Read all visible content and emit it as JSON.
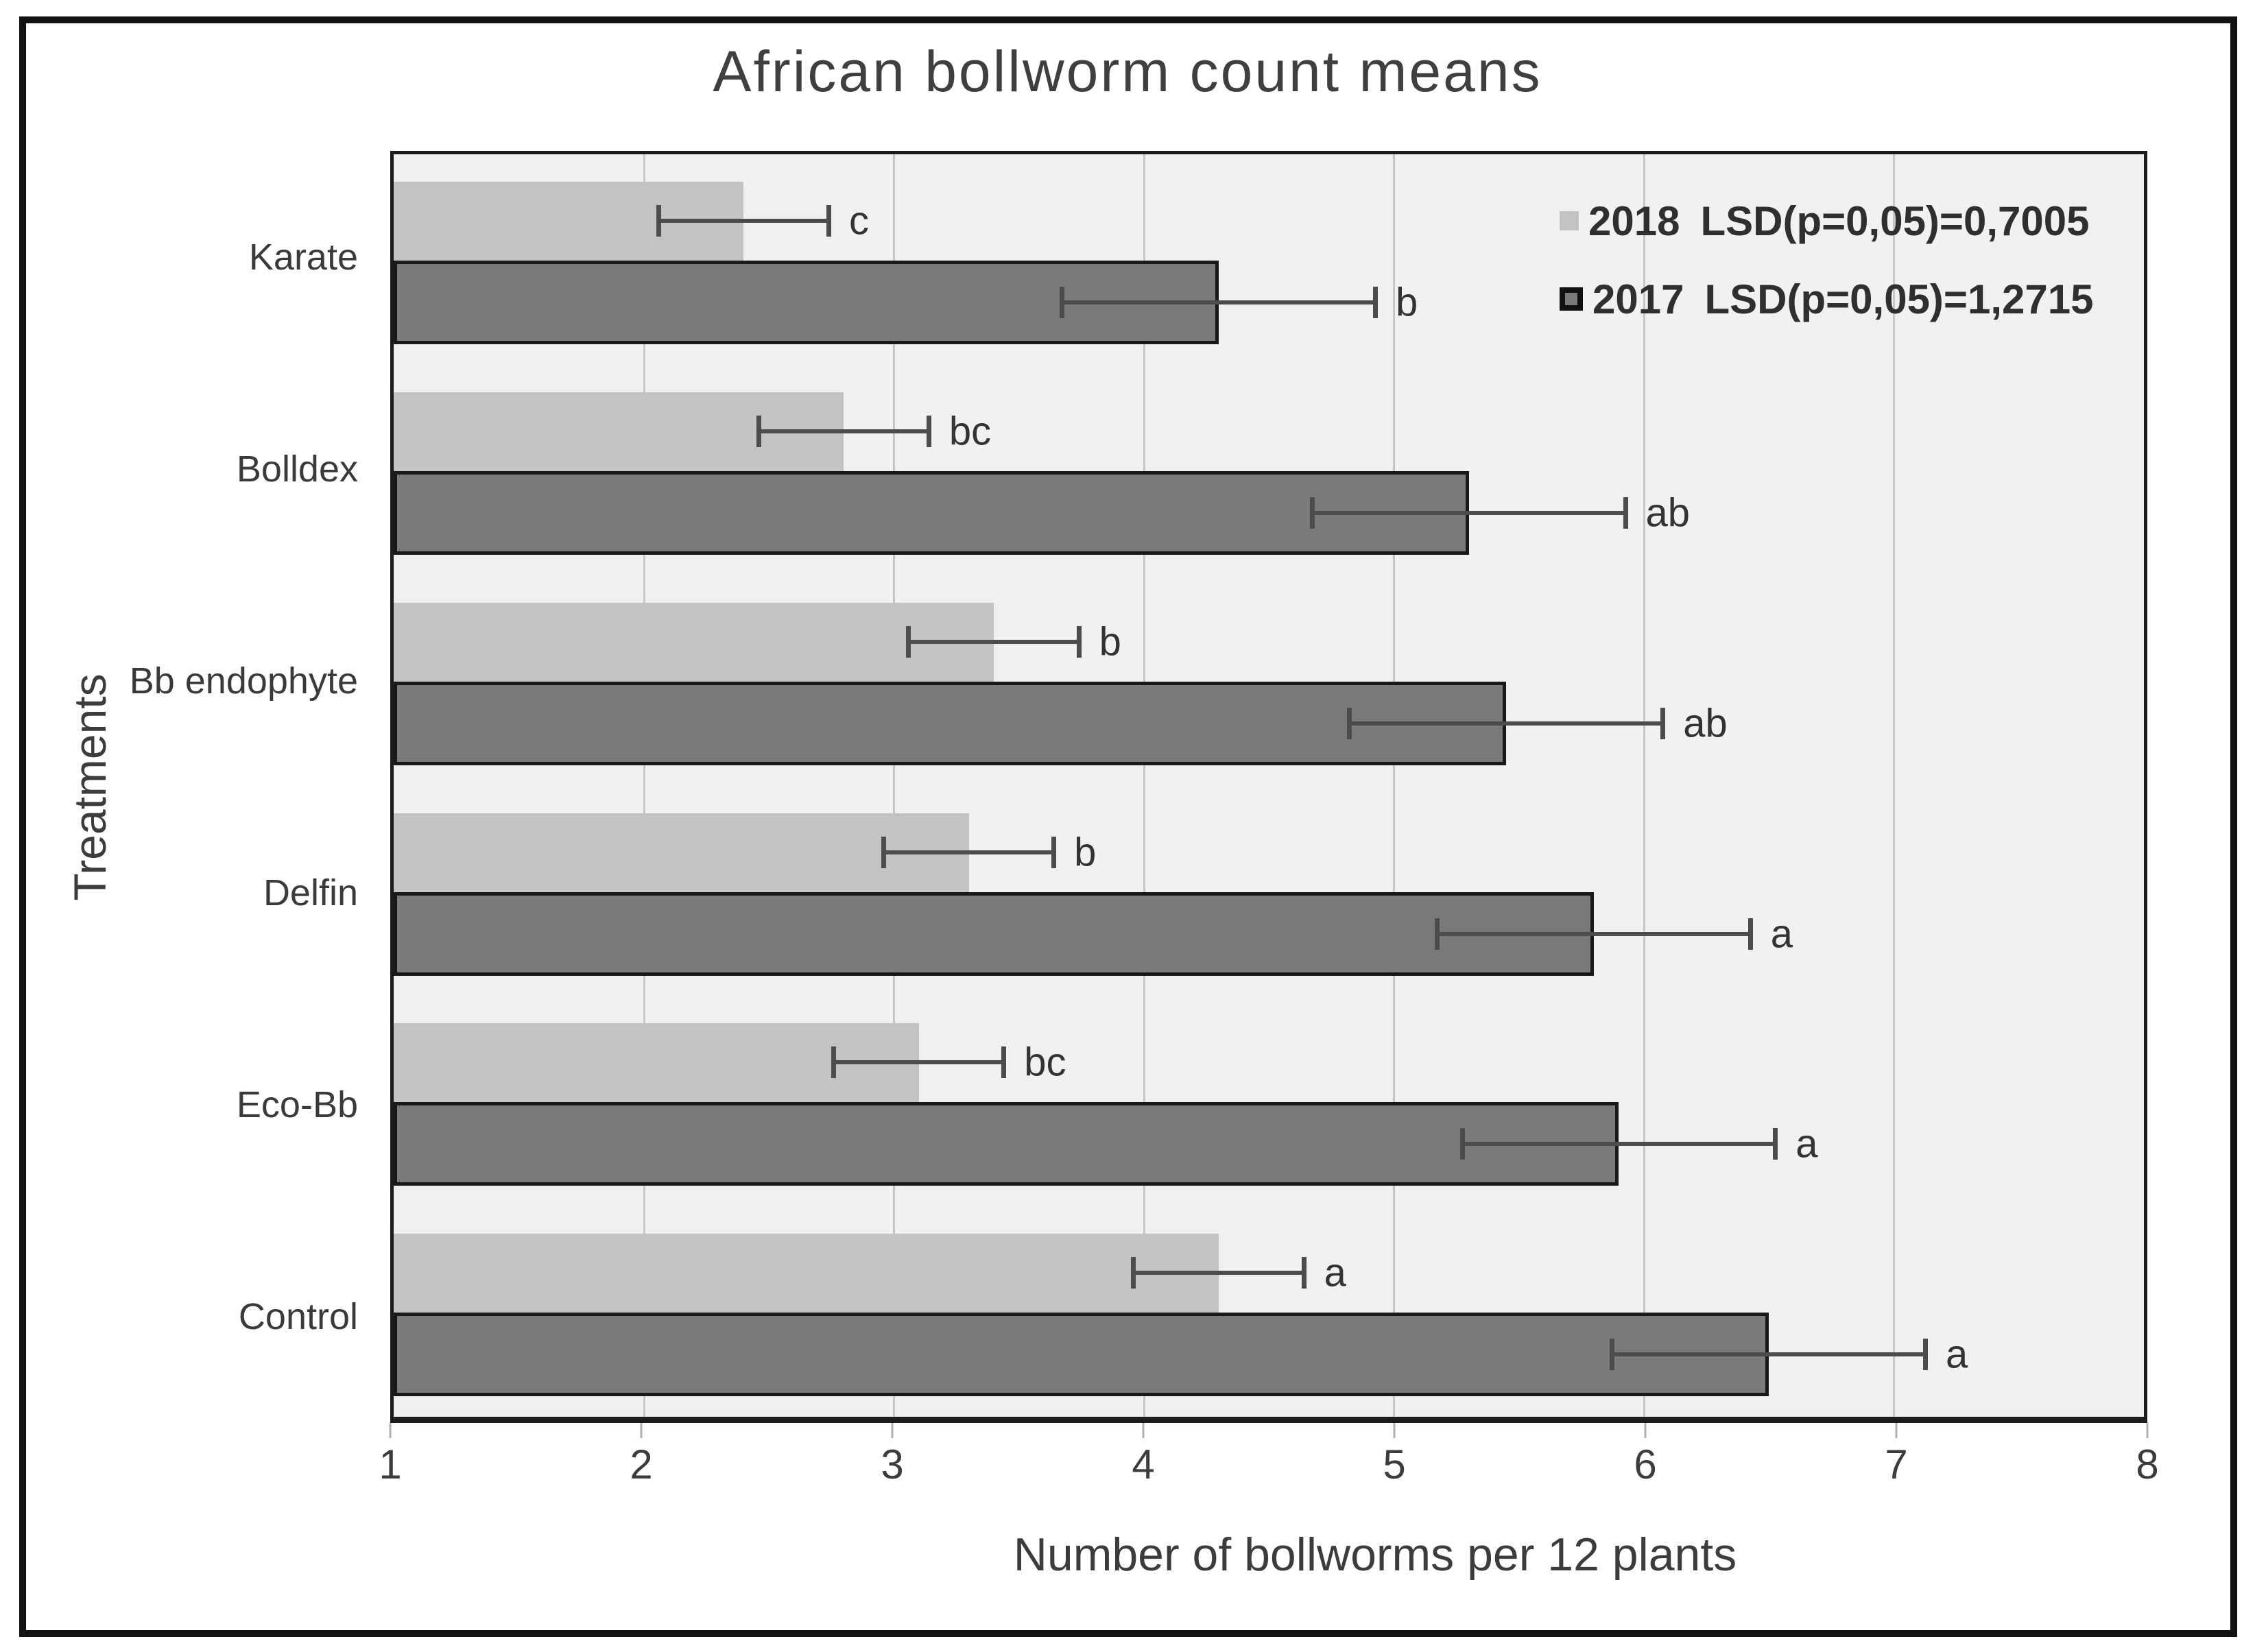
{
  "title": "African bollworm count means",
  "x_axis_title": "Number of bollworms per 12 plants",
  "y_axis_title": "Treatments",
  "legend": {
    "items": [
      {
        "year": "2018",
        "lsd": "LSD(p=0,05)=0,7005",
        "swatch_color": "#c3c3c3",
        "bordered": false
      },
      {
        "year": "2017",
        "lsd": "LSD(p=0,05)=1,2715",
        "swatch_color": "#7a7a7a",
        "bordered": true
      }
    ]
  },
  "colors": {
    "bar_2018": "#c3c3c3",
    "bar_2017": "#7a7a7a",
    "bar_2017_border": "#191919",
    "plot_background": "#f1f1f1",
    "gridline": "#c7c7c7",
    "error_bar": "#4c4c4c",
    "frame": "#121212"
  },
  "chart_data": {
    "type": "bar",
    "orientation": "horizontal",
    "title": "African bollworm count means",
    "xlabel": "Number of bollworms per 12 plants",
    "ylabel": "Treatments",
    "xlim": [
      1,
      8
    ],
    "xticks": [
      "1",
      "2",
      "3",
      "4",
      "5",
      "6",
      "7",
      "8"
    ],
    "grid": true,
    "legend_position": "top-right",
    "categories": [
      "Karate",
      "Bolldex",
      "Bb endophyte",
      "Delfin",
      "Eco-Bb",
      "Control"
    ],
    "series": [
      {
        "name": "2018",
        "color": "#c3c3c3",
        "lsd_p005": 0.7005,
        "error_bar_halfwidth": 0.35,
        "values": [
          2.4,
          2.8,
          3.4,
          3.3,
          3.1,
          4.3
        ],
        "sig_letters": [
          "c",
          "bc",
          "b",
          "b",
          "bc",
          "a"
        ]
      },
      {
        "name": "2017",
        "color": "#7a7a7a",
        "lsd_p005": 1.2715,
        "error_bar_halfwidth": 0.636,
        "values": [
          4.3,
          5.3,
          5.45,
          5.8,
          5.9,
          6.5
        ],
        "sig_letters": [
          "b",
          "ab",
          "ab",
          "a",
          "a",
          "a"
        ]
      }
    ]
  }
}
